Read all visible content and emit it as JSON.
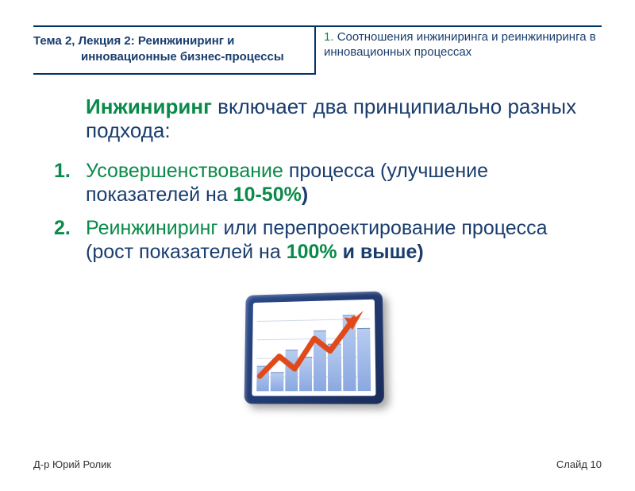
{
  "header": {
    "left_line1_prefix": "Тема ",
    "left_line1_num1": "2, ",
    "left_line1_mid": "Лекция ",
    "left_line1_num2": "2: ",
    "left_line1_suffix": "Реинжиниринг и",
    "left_line2": "инновационные бизнес-процессы",
    "right_num": "1. ",
    "right_text": "Соотношения инжиниринга и реинжиниринга в инновационных процессах"
  },
  "intro": {
    "eng_word": "Инжиниринг",
    "rest": " включает два принципиально разных подхода:"
  },
  "items": [
    {
      "num": "1.",
      "green_lead": "Усовершенствование",
      "mid": " процесса (улучшение показателей на ",
      "pct": "10-50%",
      "tail": ")"
    },
    {
      "num": "2.",
      "green_lead": "Реинжиниринг",
      "mid": " или перепроектирование процесса (рост показателей на ",
      "pct": "100%",
      "tail": " и выше)"
    }
  ],
  "chart": {
    "bar_heights_pct": [
      30,
      22,
      48,
      40,
      70,
      55,
      88,
      72
    ],
    "grid_positions_pct": [
      20,
      40,
      60,
      80
    ],
    "frame_color": "#1a2d5a",
    "bar_color_top": "#b8ccf0",
    "bar_color_bottom": "#8aa8e0",
    "arrow_color": "#e04a1a"
  },
  "footer": {
    "author": "Д-р Юрий Ролик",
    "slide_label": "Слайд ",
    "slide_num": "10"
  }
}
